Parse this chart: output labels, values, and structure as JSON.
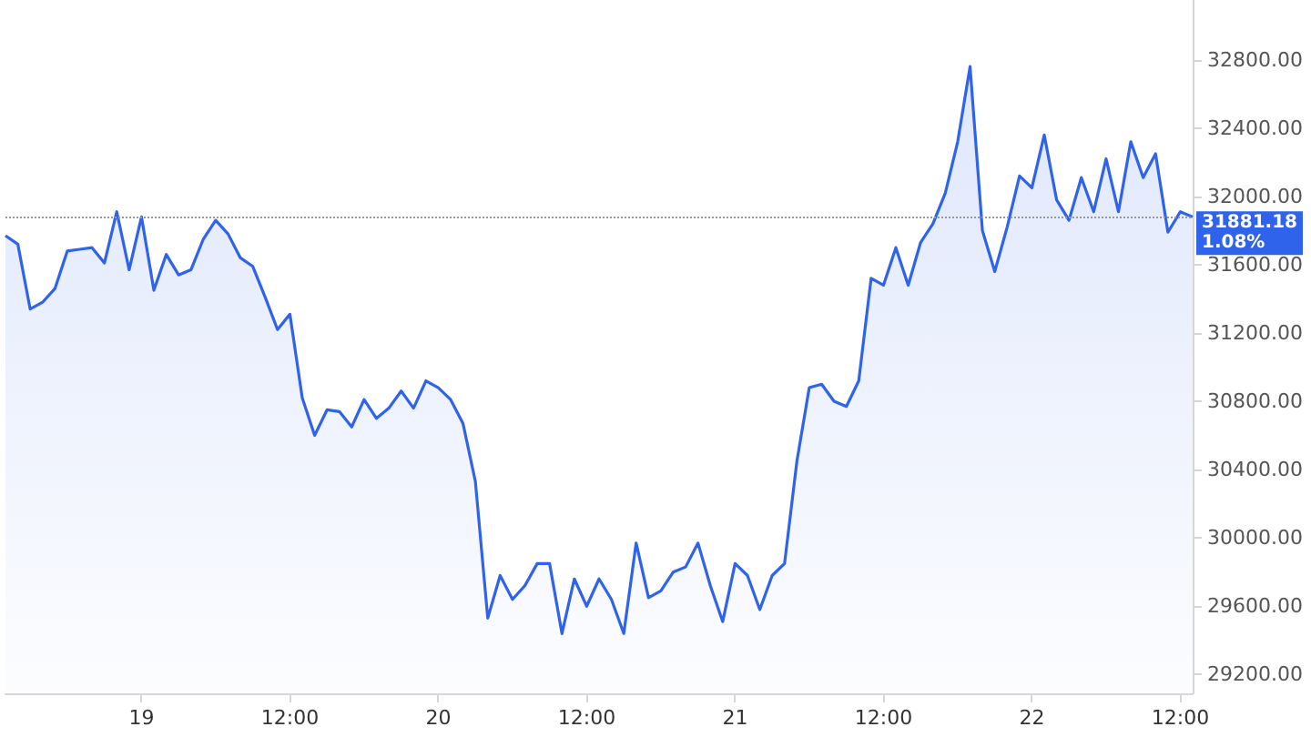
{
  "chart_data": {
    "type": "area",
    "grid": false,
    "marker": "none",
    "line_style": "solid",
    "categories": [
      null,
      null,
      null,
      null,
      null,
      null,
      null,
      null,
      null,
      null,
      null,
      "19",
      null,
      null,
      null,
      null,
      null,
      null,
      null,
      null,
      null,
      null,
      null,
      "12:00",
      null,
      null,
      null,
      null,
      null,
      null,
      null,
      null,
      null,
      null,
      null,
      "20",
      null,
      null,
      null,
      null,
      null,
      null,
      null,
      null,
      null,
      null,
      null,
      "12:00",
      null,
      null,
      null,
      null,
      null,
      null,
      null,
      null,
      null,
      null,
      null,
      "21",
      null,
      null,
      null,
      null,
      null,
      null,
      null,
      null,
      null,
      null,
      null,
      "12:00",
      null,
      null,
      null,
      null,
      null,
      null,
      null,
      null,
      null,
      null,
      null,
      "22",
      null,
      null,
      null,
      null,
      null,
      null,
      null,
      null,
      null,
      null,
      null,
      "12:00",
      null
    ],
    "ylim": [
      29090,
      33150
    ],
    "yticks": [
      {
        "value": 29200,
        "label": "29200.00"
      },
      {
        "value": 29600,
        "label": "29600.00"
      },
      {
        "value": 30000,
        "label": "30000.00"
      },
      {
        "value": 30400,
        "label": "30400.00"
      },
      {
        "value": 30800,
        "label": "30800.00"
      },
      {
        "value": 31200,
        "label": "31200.00"
      },
      {
        "value": 31600,
        "label": "31600.00"
      },
      {
        "value": 32000,
        "label": "32000.00"
      },
      {
        "value": 32400,
        "label": "32400.00"
      },
      {
        "value": 32800,
        "label": "32800.00"
      }
    ],
    "ref_lines": [
      {
        "axis": "y",
        "value": 31881.18,
        "label": "31881.18",
        "color": "#9598a1",
        "line_style": "dotted"
      }
    ],
    "annotations": [
      "1.08%"
    ],
    "series": [
      {
        "color": "#2f63eb",
        "values": [
          31770,
          31720,
          31340,
          31380,
          31460,
          31680,
          31690,
          31700,
          31610,
          31910,
          31570,
          31880,
          31450,
          31660,
          31540,
          31570,
          31750,
          31860,
          31780,
          31640,
          31590,
          31410,
          31220,
          31310,
          30820,
          30600,
          30750,
          30740,
          30650,
          30810,
          30700,
          30760,
          30860,
          30760,
          30920,
          30880,
          30810,
          30670,
          30330,
          29530,
          29780,
          29640,
          29720,
          29850,
          29850,
          29440,
          29760,
          29600,
          29760,
          29640,
          29440,
          29970,
          29650,
          29690,
          29800,
          29830,
          29970,
          29720,
          29510,
          29850,
          29780,
          29580,
          29780,
          29850,
          30450,
          30880,
          30900,
          30800,
          30770,
          30920,
          31520,
          31480,
          31700,
          31480,
          31730,
          31840,
          32020,
          32320,
          32760,
          31800,
          31560,
          31820,
          32120,
          32050,
          32360,
          31980,
          31860,
          32110,
          31910,
          32220,
          31910,
          32320,
          32110,
          32250,
          31790,
          31910,
          31880
        ]
      }
    ]
  }
}
